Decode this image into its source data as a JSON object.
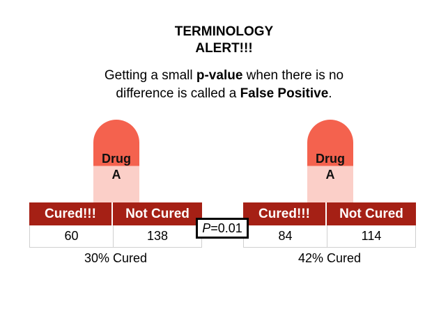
{
  "title": {
    "line1": "TERMINOLOGY",
    "line2": "ALERT!!!"
  },
  "statement": {
    "part1": "Getting a small ",
    "bold1": "p-value",
    "part2": " when there is no difference is called a ",
    "bold2": "False Positive",
    "part3": "."
  },
  "colors": {
    "pill_top": "#f4624e",
    "pill_bottom": "#fbcfc8",
    "header_bg": "#a52015",
    "header_text": "#ffffff"
  },
  "groups": [
    {
      "pill": {
        "line1": "Drug",
        "line2": "A"
      },
      "table": {
        "headers": [
          "Cured!!!",
          "Not Cured"
        ],
        "values": [
          "60",
          "138"
        ]
      },
      "summary": "30% Cured"
    },
    {
      "pill": {
        "line1": "Drug",
        "line2": "A"
      },
      "table": {
        "headers": [
          "Cured!!!",
          "Not Cured"
        ],
        "values": [
          "84",
          "114"
        ]
      },
      "summary": "42% Cured"
    }
  ],
  "p_value": {
    "label": "P",
    "value": "=0.01"
  }
}
